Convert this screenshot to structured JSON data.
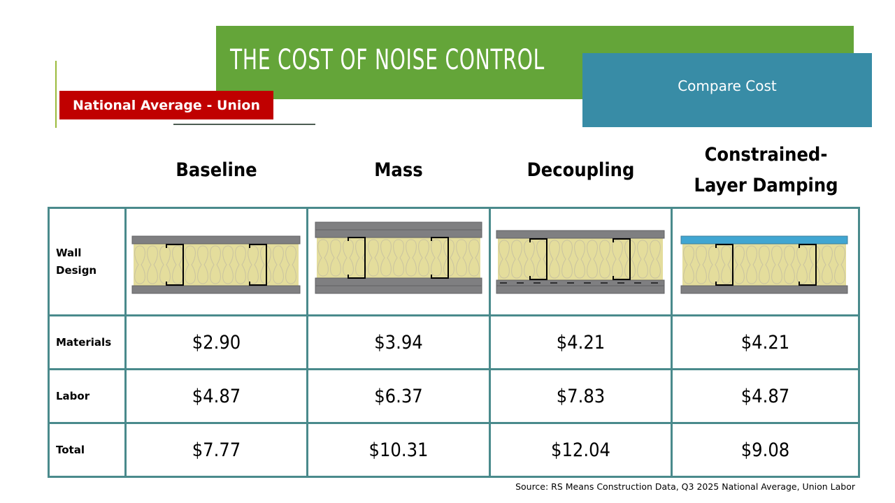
{
  "slide": {
    "title": "THE COST OF NOISE CONTROL",
    "subtitle_box": "Compare Cost",
    "badge": "National Average - Union",
    "source": "Source: RS Means Construction Data, Q3 2025 National Average, Union Labor"
  },
  "colors": {
    "title_bg": "#64a539",
    "subtitle_bg": "#388ca6",
    "badge_bg": "#c00000",
    "table_border": "#4a8a8c",
    "drywall": "#7f7f81",
    "insulation": "#e4dd9c",
    "damping_layer": "#41a6d2"
  },
  "table": {
    "columns": [
      "Baseline",
      "Mass",
      "Decoupling",
      "Constrained-Layer Damping"
    ],
    "column_lines": {
      "constrained_line1": "Constrained-",
      "constrained_line2": "Layer Damping"
    },
    "row_labels": {
      "wall_design_line1": "Wall",
      "wall_design_line2": "Design",
      "materials": "Materials",
      "labor": "Labor",
      "total": "Total"
    },
    "wall_designs": [
      {
        "name": "baseline",
        "top_layers": 1,
        "bottom_layers": 1,
        "resilient_channel": false,
        "damping": false
      },
      {
        "name": "mass",
        "top_layers": 2,
        "bottom_layers": 2,
        "resilient_channel": false,
        "damping": false
      },
      {
        "name": "decoupling",
        "top_layers": 1,
        "bottom_layers": 1,
        "resilient_channel": true,
        "damping": false
      },
      {
        "name": "constrained-layer-damping",
        "top_layers": 1,
        "bottom_layers": 1,
        "resilient_channel": false,
        "damping": true
      }
    ],
    "materials": [
      "$2.90",
      "$3.94",
      "$4.21",
      "$4.21"
    ],
    "labor": [
      "$4.87",
      "$6.37",
      "$7.83",
      "$4.87"
    ],
    "total": [
      "$7.77",
      "$10.31",
      "$12.04",
      "$9.08"
    ]
  }
}
